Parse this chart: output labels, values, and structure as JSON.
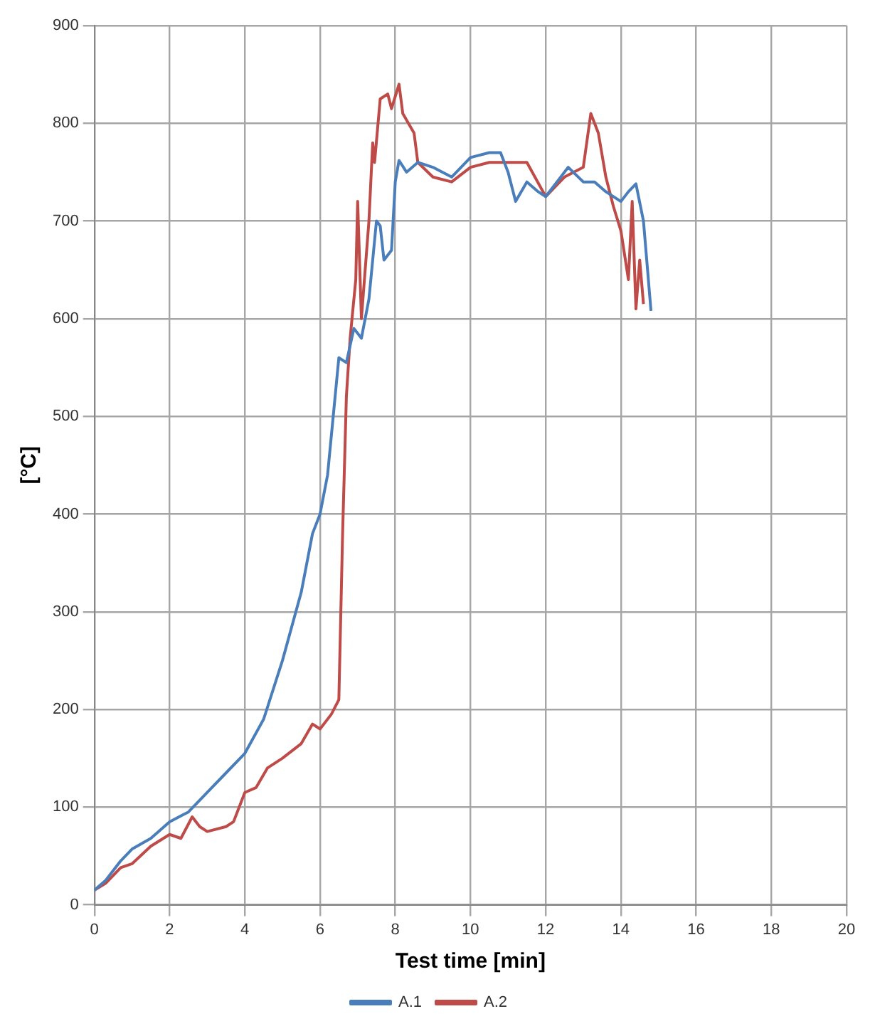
{
  "chart_data": {
    "type": "line",
    "xlabel": "Test time [min]",
    "ylabel": "[°C]",
    "xlim": [
      0,
      20
    ],
    "xticks": [
      0,
      2,
      4,
      6,
      8,
      10,
      12,
      14,
      16,
      18,
      20
    ],
    "ylim": [
      0,
      900
    ],
    "yticks": [
      0,
      100,
      200,
      300,
      400,
      500,
      600,
      700,
      800,
      900
    ],
    "grid": true,
    "legend": "bottom",
    "marker": "none",
    "line_style": "solid",
    "series": [
      {
        "name": "A.1",
        "color": "#4a7ebb",
        "x": [
          0,
          0.3,
          0.7,
          1,
          1.5,
          2,
          2.5,
          3,
          3.5,
          4,
          4.5,
          5,
          5.5,
          5.8,
          6,
          6.2,
          6.4,
          6.5,
          6.7,
          6.9,
          7.1,
          7.3,
          7.5,
          7.6,
          7.7,
          7.9,
          8,
          8.1,
          8.3,
          8.6,
          9,
          9.5,
          10,
          10.5,
          10.8,
          11,
          11.2,
          11.5,
          11.8,
          12,
          12.3,
          12.6,
          13,
          13.3,
          13.6,
          14,
          14.2,
          14.4,
          14.6,
          14.8
        ],
        "values": [
          15,
          25,
          45,
          57,
          68,
          85,
          95,
          115,
          135,
          155,
          190,
          250,
          320,
          380,
          400,
          440,
          520,
          560,
          555,
          590,
          580,
          620,
          700,
          695,
          660,
          670,
          740,
          762,
          750,
          760,
          755,
          745,
          765,
          770,
          770,
          750,
          720,
          740,
          730,
          725,
          740,
          755,
          740,
          740,
          730,
          720,
          730,
          738,
          700,
          608
        ]
      },
      {
        "name": "A.2",
        "color": "#be4b48",
        "x": [
          0,
          0.3,
          0.7,
          1,
          1.5,
          2,
          2.3,
          2.6,
          2.8,
          3,
          3.5,
          3.7,
          4,
          4.3,
          4.6,
          5,
          5.5,
          5.8,
          6,
          6.3,
          6.5,
          6.6,
          6.7,
          6.8,
          6.95,
          7,
          7.1,
          7.3,
          7.4,
          7.45,
          7.6,
          7.8,
          7.9,
          8.1,
          8.2,
          8.5,
          8.6,
          9,
          9.5,
          10,
          10.5,
          11,
          11.5,
          12,
          12.5,
          13,
          13.2,
          13.4,
          13.6,
          13.8,
          14,
          14.2,
          14.3,
          14.4,
          14.5,
          14.6
        ],
        "values": [
          15,
          22,
          38,
          42,
          60,
          72,
          68,
          90,
          80,
          75,
          80,
          85,
          115,
          120,
          140,
          150,
          165,
          185,
          180,
          195,
          210,
          380,
          520,
          580,
          640,
          720,
          600,
          700,
          780,
          760,
          825,
          830,
          815,
          840,
          810,
          790,
          760,
          745,
          740,
          755,
          760,
          760,
          760,
          725,
          745,
          755,
          810,
          790,
          745,
          715,
          690,
          640,
          720,
          610,
          660,
          615
        ]
      }
    ]
  }
}
